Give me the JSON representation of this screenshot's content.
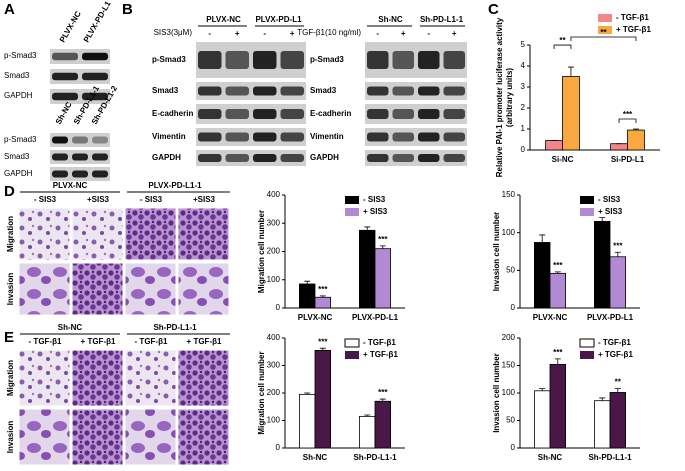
{
  "panels": [
    "A",
    "B",
    "C",
    "D",
    "E"
  ],
  "blot_a": {
    "top_lanes": [
      "PLVX-NC",
      "PLVX-PD-L1"
    ],
    "top_rows": [
      "p-Smad3",
      "Smad3",
      "GAPDH"
    ],
    "bottom_lanes": [
      "Sh-NC",
      "Sh-PD-L1-1",
      "Sh-PD-L1-2"
    ],
    "bottom_rows": [
      "p-Smad3",
      "Smad3",
      "GAPDH"
    ]
  },
  "blot_b": {
    "left": {
      "groups": [
        "PLVX-NC",
        "PLVX-PD-L1"
      ],
      "treatment": "SIS3(3μM)",
      "signs": [
        "-",
        "+",
        "-",
        "+"
      ],
      "rows": [
        "p-Smad3",
        "Smad3",
        "E-cadherin",
        "Vimentin",
        "GAPDH"
      ]
    },
    "right": {
      "groups": [
        "Sh-NC",
        "Sh-PD-L1-1"
      ],
      "treatment": "TGF-β1(10 ng/ml)",
      "signs": [
        "-",
        "+",
        "-",
        "+"
      ],
      "rows": [
        "p-Smad3",
        "Smad3",
        "E-cadherin",
        "Vimentin",
        "GAPDH"
      ]
    }
  },
  "images_d": {
    "groups": [
      "PLVX-NC",
      "PLVX-PD-L1-1"
    ],
    "conditions": [
      "- SIS3",
      "+SIS3",
      "- SIS3",
      "+SIS3"
    ],
    "rows": [
      "Migration",
      "Invasion"
    ]
  },
  "images_e": {
    "groups": [
      "Sh-NC",
      "Sh-PD-L1-1"
    ],
    "conditions": [
      "- TGF-β1",
      "+ TGF-β1",
      "- TGF-β1",
      "+ TGF-β1"
    ],
    "rows": [
      "Migration",
      "Invasion"
    ]
  },
  "chart_data": [
    {
      "type": "bar",
      "ylabel": [
        "Relative PAI-1 promoter luciferase activity",
        "(arbitrary units)"
      ],
      "categories": [
        "Si-NC",
        "Si-PD-L1"
      ],
      "series": [
        {
          "name": "- TGF-β1",
          "color": "#f4868a",
          "values": [
            0.45,
            0.3
          ],
          "errors": [
            0,
            0
          ]
        },
        {
          "name": "+ TGF-β1",
          "color": "#f9a740",
          "values": [
            3.5,
            0.95
          ],
          "errors": [
            0.45,
            0.05
          ]
        }
      ],
      "annotations": [
        "**",
        "***",
        "**"
      ],
      "ylim": [
        0,
        5
      ],
      "yticks": [
        0,
        1,
        2,
        3,
        4,
        5
      ],
      "legend": "upper right"
    },
    {
      "type": "bar",
      "ylabel": [
        "Migration cell number"
      ],
      "categories": [
        "PLVX-NC",
        "PLVX-PD-L1"
      ],
      "series": [
        {
          "name": "- SIS3",
          "color": "#000000",
          "values": [
            85,
            275
          ],
          "errors": [
            10,
            12
          ]
        },
        {
          "name": "+ SIS3",
          "color": "#b28ad4",
          "values": [
            38,
            210
          ],
          "errors": [
            5,
            10
          ],
          "significance": [
            "***",
            "***"
          ]
        }
      ],
      "ylim": [
        0,
        400
      ],
      "yticks": [
        0,
        100,
        200,
        300,
        400
      ],
      "legend": "upper right"
    },
    {
      "type": "bar",
      "ylabel": [
        "Invasion cell number"
      ],
      "categories": [
        "PLVX-NC",
        "PLVX-PD-L1"
      ],
      "series": [
        {
          "name": "- SIS3",
          "color": "#000000",
          "values": [
            87,
            115
          ],
          "errors": [
            10,
            5
          ]
        },
        {
          "name": "+ SIS3",
          "color": "#b28ad4",
          "values": [
            46,
            68
          ],
          "errors": [
            2,
            6
          ],
          "significance": [
            "***",
            "***"
          ]
        }
      ],
      "ylim": [
        0,
        150
      ],
      "yticks": [
        0,
        50,
        100,
        150
      ],
      "legend": "upper right"
    },
    {
      "type": "bar",
      "ylabel": [
        "Migration cell number"
      ],
      "categories": [
        "Sh-NC",
        "Sh-PD-L1-1"
      ],
      "series": [
        {
          "name": "- TGF-β1",
          "color": "#ffffff",
          "values": [
            195,
            115
          ],
          "errors": [
            5,
            5
          ]
        },
        {
          "name": "+ TGF-β1",
          "color": "#4a1848",
          "values": [
            355,
            170
          ],
          "errors": [
            8,
            8
          ],
          "significance": [
            "***",
            "***"
          ]
        }
      ],
      "ylim": [
        0,
        400
      ],
      "yticks": [
        0,
        100,
        200,
        300,
        400
      ],
      "legend": "upper right"
    },
    {
      "type": "bar",
      "ylabel": [
        "Invasion cell number"
      ],
      "categories": [
        "Sh-NC",
        "Sh-PD-L1-1"
      ],
      "series": [
        {
          "name": "- TGF-β1",
          "color": "#ffffff",
          "values": [
            104,
            86
          ],
          "errors": [
            4,
            5
          ]
        },
        {
          "name": "+ TGF-β1",
          "color": "#4a1848",
          "values": [
            152,
            101
          ],
          "errors": [
            10,
            7
          ],
          "significance": [
            "***",
            "**"
          ]
        }
      ],
      "ylim": [
        0,
        200
      ],
      "yticks": [
        0,
        50,
        100,
        150,
        200
      ],
      "legend": "upper right"
    }
  ]
}
